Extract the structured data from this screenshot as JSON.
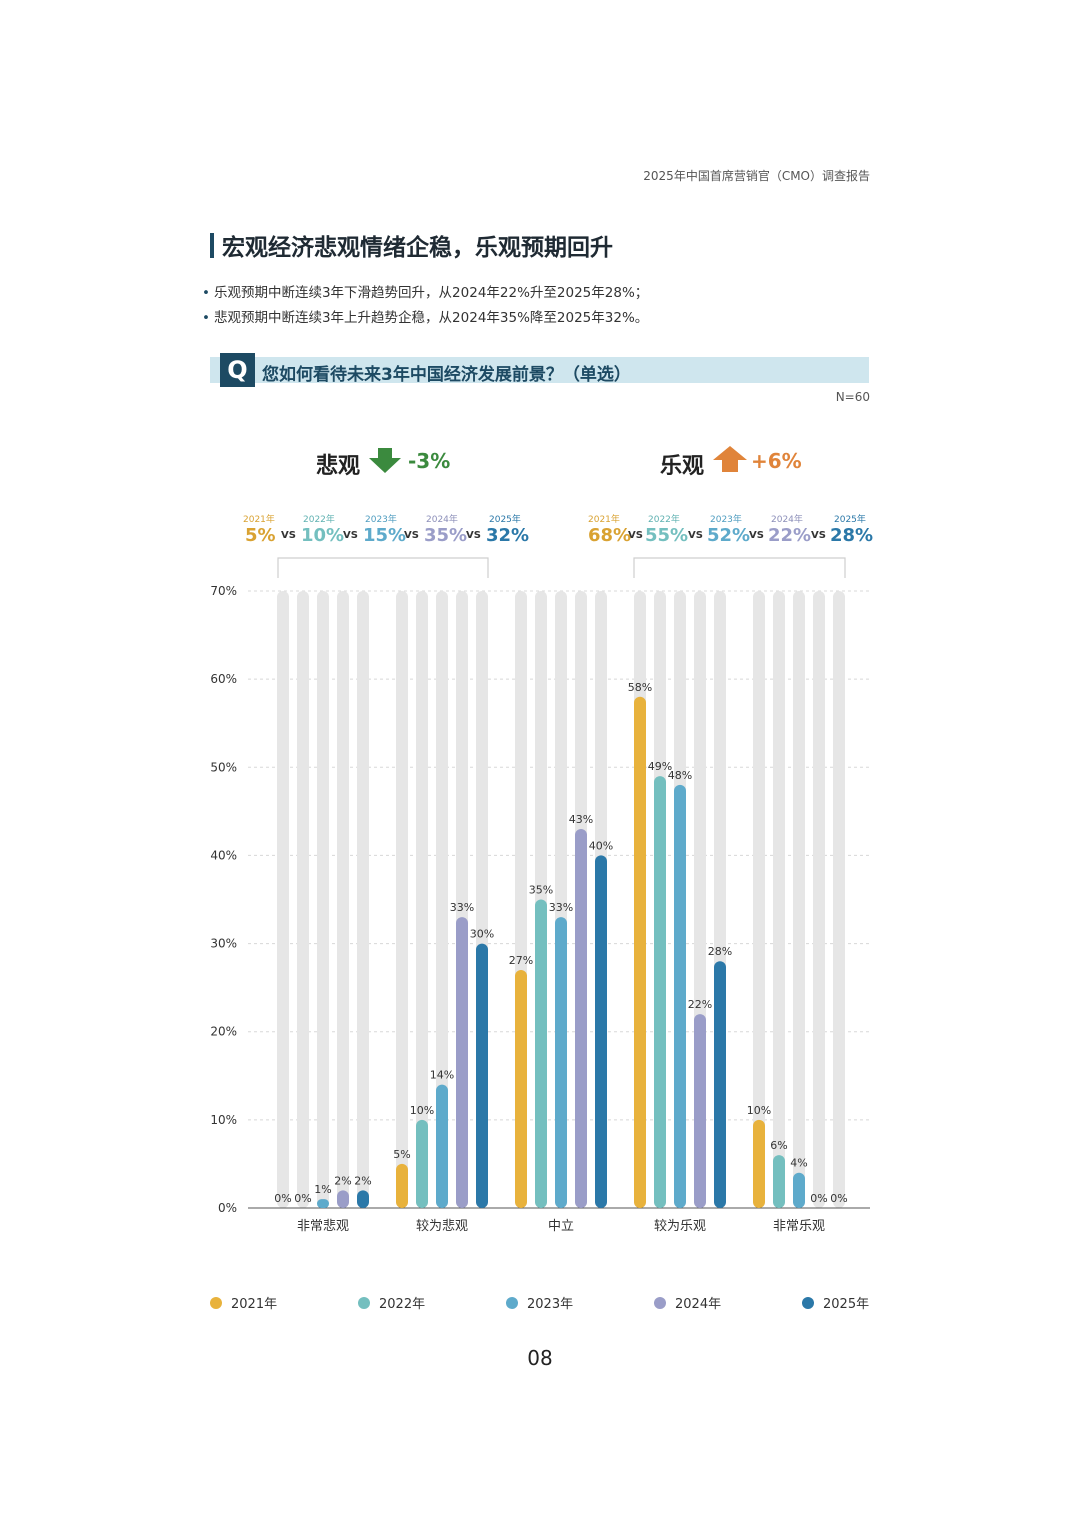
{
  "header": {
    "report_title": "2025年中国首席营销官（CMO）调查报告"
  },
  "section": {
    "title": "宏观经济悲观情绪企稳，乐观预期回升",
    "bullets": [
      "乐观预期中断连续3年下滑趋势回升，从2024年22%升至2025年28%；",
      "悲观预期中断连续3年上升趋势企稳，从2024年35%降至2025年32%。"
    ]
  },
  "question": {
    "badge": "Q",
    "text": "您如何看待未来3年中国经济发展前景？（单选）",
    "sample": "N=60"
  },
  "summary": {
    "pessimistic": {
      "label": "悲观",
      "delta": "-3%",
      "delta_color": "#3b8a3e",
      "arrow": "down-arrow-icon",
      "years": [
        "2021年",
        "2022年",
        "2023年",
        "2024年",
        "2025年"
      ],
      "values": [
        "5%",
        "10%",
        "15%",
        "35%",
        "32%"
      ],
      "vs": "VS"
    },
    "optimistic": {
      "label": "乐观",
      "delta": "+6%",
      "delta_color": "#e0843a",
      "arrow": "up-arrow-icon",
      "years": [
        "2021年",
        "2022年",
        "2023年",
        "2024年",
        "2025年"
      ],
      "values": [
        "68%",
        "55%",
        "52%",
        "22%",
        "28%"
      ],
      "vs": "VS"
    }
  },
  "chart_data": {
    "type": "bar",
    "categories": [
      "非常悲观",
      "较为悲观",
      "中立",
      "较为乐观",
      "非常乐观"
    ],
    "series": [
      {
        "name": "2021年",
        "color": "#e8b23c",
        "values": [
          0,
          5,
          27,
          58,
          10
        ]
      },
      {
        "name": "2022年",
        "color": "#74bfbf",
        "values": [
          0,
          10,
          35,
          49,
          6
        ]
      },
      {
        "name": "2023年",
        "color": "#5eaacb",
        "values": [
          1,
          14,
          33,
          48,
          4
        ]
      },
      {
        "name": "2024年",
        "color": "#9a9dc8",
        "values": [
          2,
          33,
          43,
          22,
          0
        ]
      },
      {
        "name": "2025年",
        "color": "#2b78a8",
        "values": [
          2,
          30,
          40,
          28,
          0
        ]
      }
    ],
    "ylim": [
      0,
      70
    ],
    "yticks": [
      "0%",
      "10%",
      "20%",
      "30%",
      "40%",
      "50%",
      "60%",
      "70%"
    ],
    "grid": true,
    "legend": "bottom",
    "value_suffix": "%"
  },
  "page": {
    "number": "08"
  }
}
